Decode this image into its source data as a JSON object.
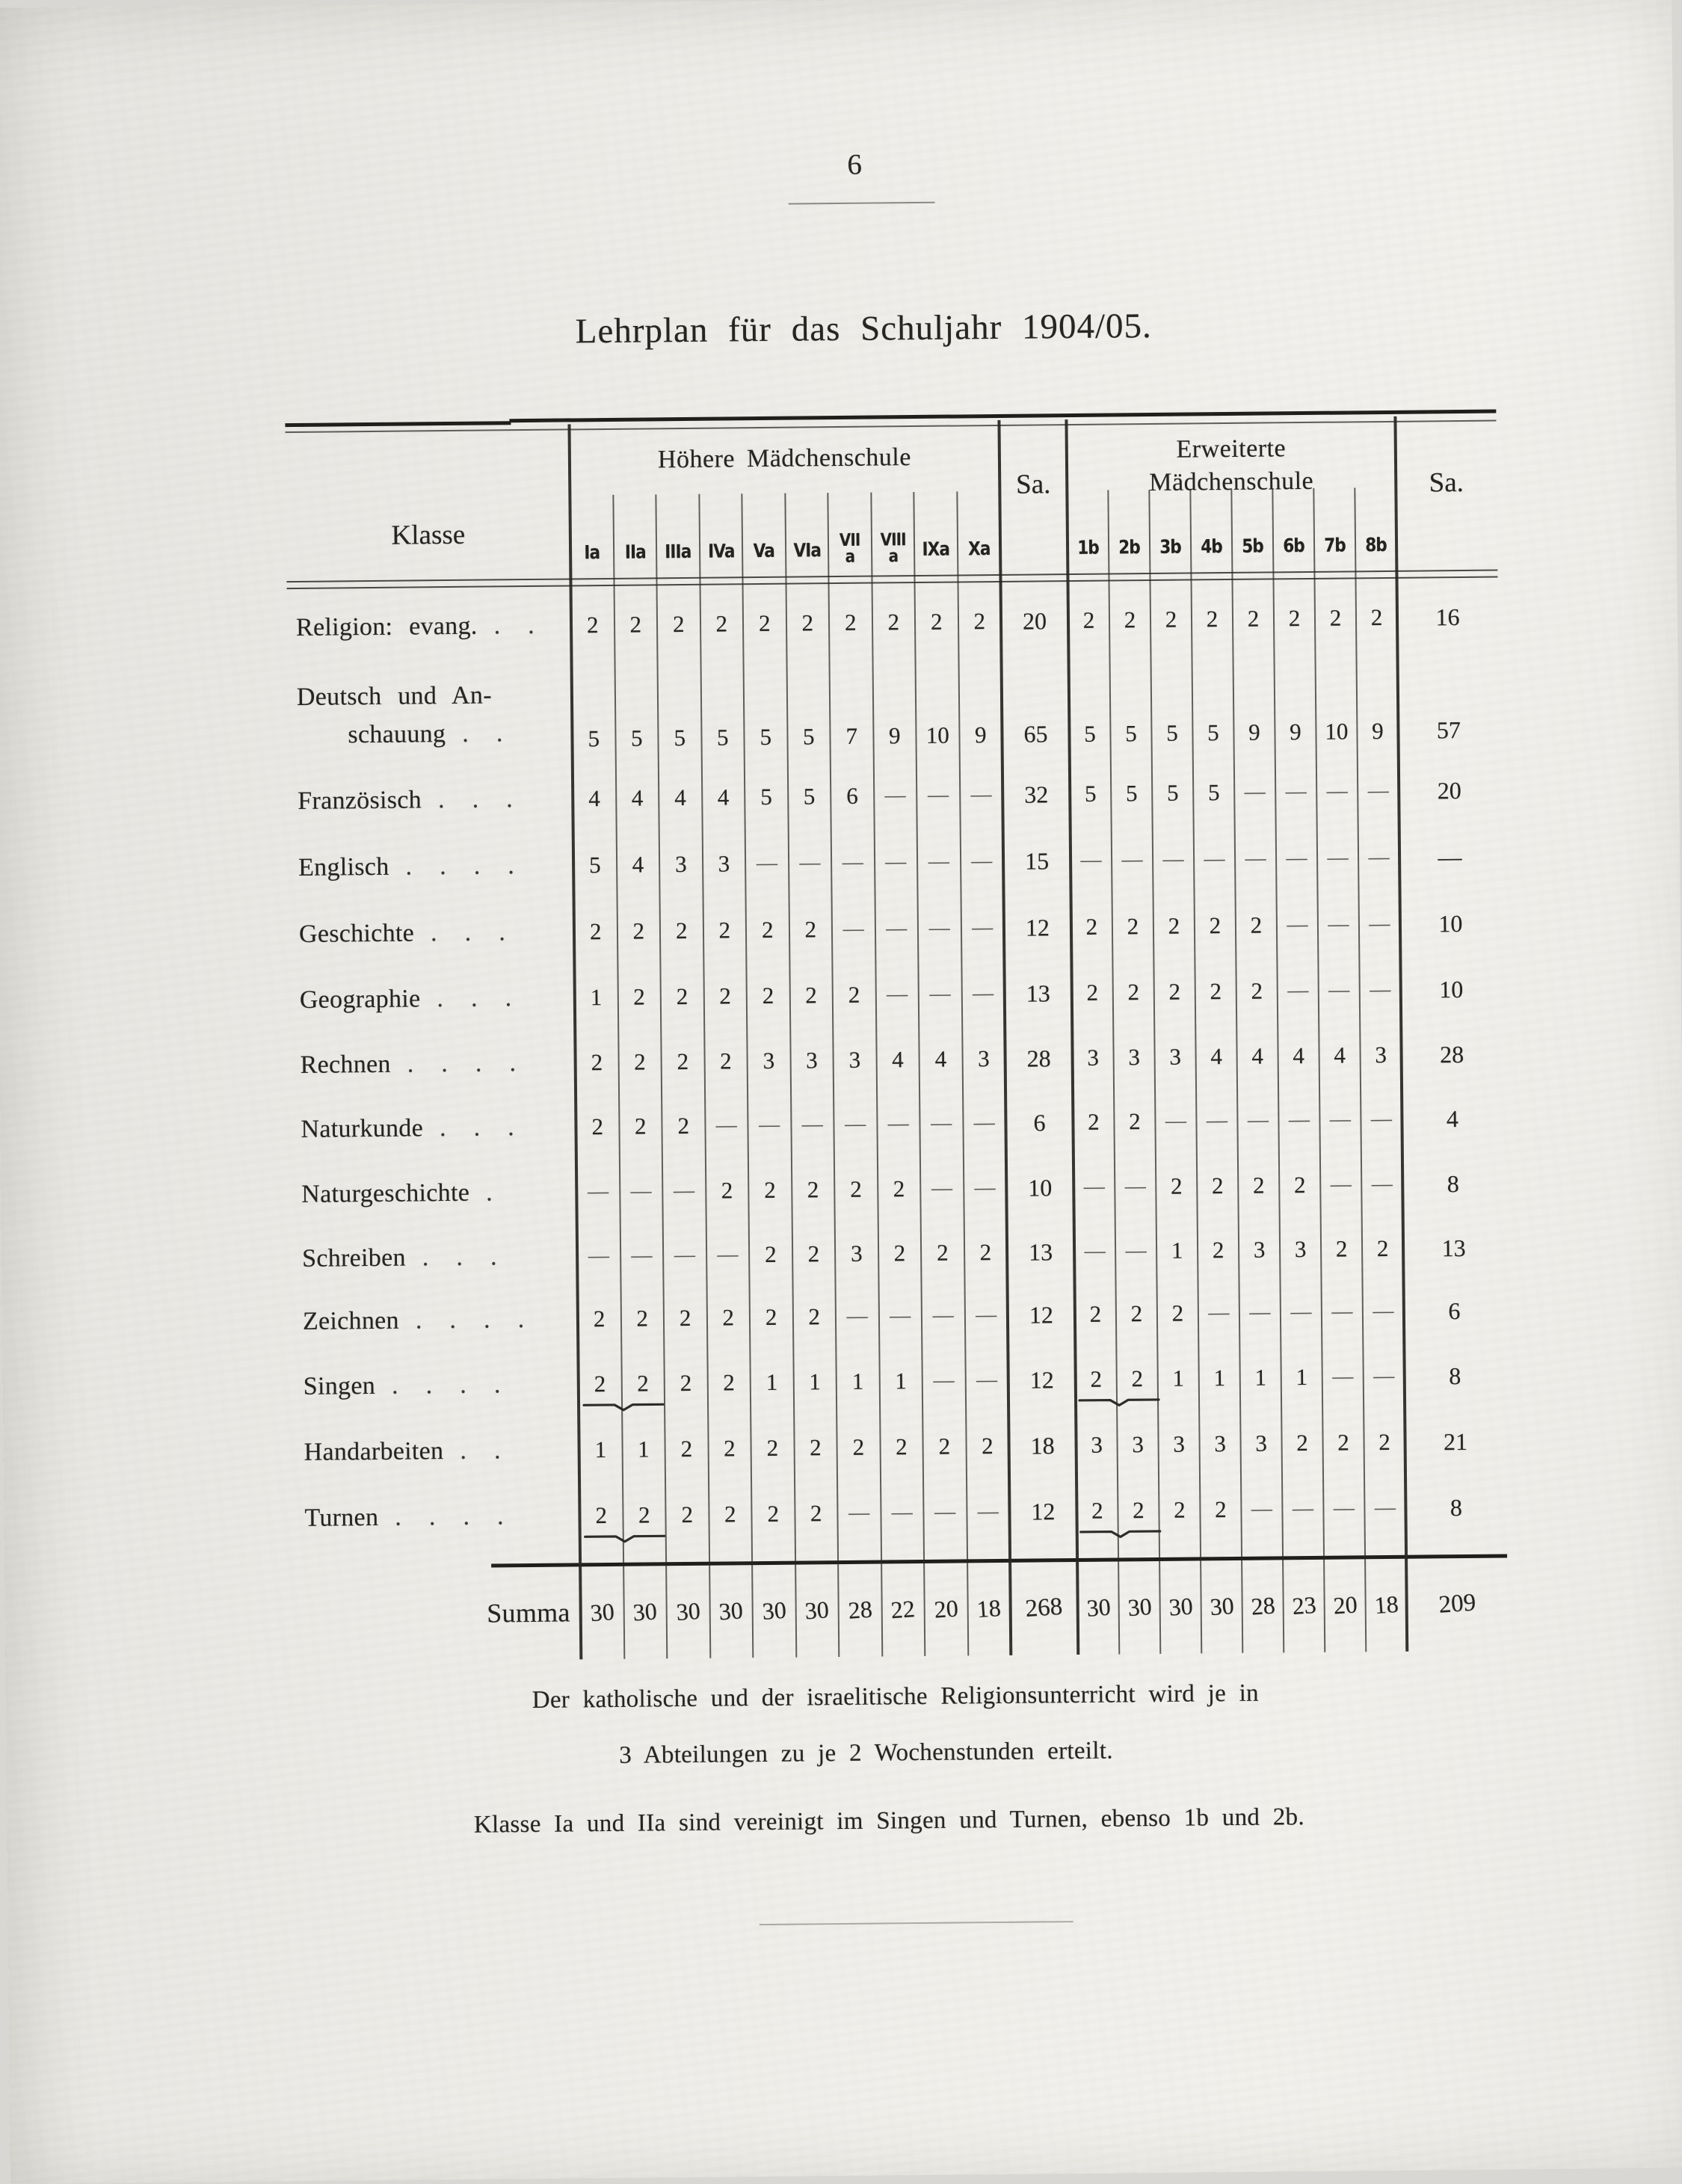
{
  "page_number": "6",
  "title": "Lehrplan für das Schuljahr 1904/05.",
  "table": {
    "klasse_label": "Klasse",
    "group_a_title": "Höhere Mädchenschule",
    "group_b_line1": "Erweiterte",
    "group_b_line2": "Mädchenschule",
    "sa_label_a": "Sa.",
    "sa_label_b": "Sa.",
    "cols_a": [
      "Ia",
      "IIa",
      "IIIa",
      "IVa",
      "Va",
      "VIa",
      "VIIa",
      "VIIIa",
      "IXa",
      "Xa"
    ],
    "cols_b": [
      "1b",
      "2b",
      "3b",
      "4b",
      "5b",
      "6b",
      "7b",
      "8b"
    ],
    "rows": [
      {
        "label": "Religion: evang.",
        "dots": ". .",
        "a": [
          2,
          2,
          2,
          2,
          2,
          2,
          2,
          2,
          2,
          2
        ],
        "sa_a": 20,
        "b": [
          2,
          2,
          2,
          2,
          2,
          2,
          2,
          2
        ],
        "sa_b": 16
      },
      {
        "label": "Deutsch und An-",
        "label2": "schauung",
        "dots": ". .",
        "a": [
          5,
          5,
          5,
          5,
          5,
          5,
          7,
          9,
          10,
          9
        ],
        "sa_a": 65,
        "b": [
          5,
          5,
          5,
          5,
          9,
          9,
          10,
          9
        ],
        "sa_b": 57
      },
      {
        "label": "Französisch",
        "dots": ". . .",
        "a": [
          4,
          4,
          4,
          4,
          5,
          5,
          6,
          null,
          null,
          null
        ],
        "sa_a": 32,
        "b": [
          5,
          5,
          5,
          5,
          null,
          null,
          null,
          null
        ],
        "sa_b": 20
      },
      {
        "label": "Englisch",
        "dots": ". . . .",
        "a": [
          5,
          4,
          3,
          3,
          null,
          null,
          null,
          null,
          null,
          null
        ],
        "sa_a": 15,
        "b": [
          null,
          null,
          null,
          null,
          null,
          null,
          null,
          null
        ],
        "sa_b": "—"
      },
      {
        "label": "Geschichte",
        "dots": ". . .",
        "a": [
          2,
          2,
          2,
          2,
          2,
          2,
          null,
          null,
          null,
          null
        ],
        "sa_a": 12,
        "b": [
          2,
          2,
          2,
          2,
          2,
          null,
          null,
          null
        ],
        "sa_b": 10
      },
      {
        "label": "Geographie",
        "dots": ". . .",
        "a": [
          1,
          2,
          2,
          2,
          2,
          2,
          2,
          null,
          null,
          null
        ],
        "sa_a": 13,
        "b": [
          2,
          2,
          2,
          2,
          2,
          null,
          null,
          null
        ],
        "sa_b": 10
      },
      {
        "label": "Rechnen",
        "dots": ". . . .",
        "a": [
          2,
          2,
          2,
          2,
          3,
          3,
          3,
          4,
          4,
          3
        ],
        "sa_a": 28,
        "b": [
          3,
          3,
          3,
          4,
          4,
          4,
          4,
          3
        ],
        "sa_b": 28
      },
      {
        "label": "Naturkunde",
        "dots": ". . .",
        "a": [
          2,
          2,
          2,
          null,
          null,
          null,
          null,
          null,
          null,
          null
        ],
        "sa_a": 6,
        "b": [
          2,
          2,
          null,
          null,
          null,
          null,
          null,
          null
        ],
        "sa_b": 4
      },
      {
        "label": "Naturgeschichte",
        "dots": ".",
        "a": [
          null,
          null,
          null,
          2,
          2,
          2,
          2,
          2,
          null,
          null
        ],
        "sa_a": 10,
        "b": [
          null,
          null,
          2,
          2,
          2,
          2,
          null,
          null
        ],
        "sa_b": 8
      },
      {
        "label": "Schreiben",
        "dots": ". . .",
        "a": [
          null,
          null,
          null,
          null,
          2,
          2,
          3,
          2,
          2,
          2
        ],
        "sa_a": 13,
        "b": [
          null,
          null,
          1,
          2,
          3,
          3,
          2,
          2
        ],
        "sa_b": 13
      },
      {
        "label": "Zeichnen",
        "dots": ". . . .",
        "a": [
          2,
          2,
          2,
          2,
          2,
          2,
          null,
          null,
          null,
          null
        ],
        "sa_a": 12,
        "b": [
          2,
          2,
          2,
          null,
          null,
          null,
          null,
          null
        ],
        "sa_b": 6
      },
      {
        "label": "Singen",
        "dots": ". . . .",
        "a": [
          2,
          2,
          2,
          2,
          1,
          1,
          1,
          1,
          null,
          null
        ],
        "sa_a": 12,
        "b": [
          2,
          2,
          1,
          1,
          1,
          1,
          null,
          null
        ],
        "sa_b": 8,
        "brace_a": true,
        "brace_b": true
      },
      {
        "label": "Handarbeiten",
        "dots": ". .",
        "a": [
          1,
          1,
          2,
          2,
          2,
          2,
          2,
          2,
          2,
          2
        ],
        "sa_a": 18,
        "b": [
          3,
          3,
          3,
          3,
          3,
          2,
          2,
          2
        ],
        "sa_b": 21
      },
      {
        "label": "Turnen",
        "dots": ". . . .",
        "a": [
          2,
          2,
          2,
          2,
          2,
          2,
          null,
          null,
          null,
          null
        ],
        "sa_a": 12,
        "b": [
          2,
          2,
          2,
          2,
          null,
          null,
          null,
          null
        ],
        "sa_b": 8,
        "brace_a": true,
        "brace_b": true
      }
    ],
    "summa": {
      "label": "Summa",
      "a": [
        30,
        30,
        30,
        30,
        30,
        30,
        28,
        22,
        20,
        18
      ],
      "sa_a": 268,
      "b": [
        30,
        30,
        30,
        30,
        28,
        23,
        20,
        18
      ],
      "sa_b": 209
    }
  },
  "notes": {
    "note1_line1": "Der katholische und der israelitische Religionsunterricht wird je in",
    "note1_line2": "3 Abteilungen zu je 2 Wochenstunden erteilt.",
    "note2": "Klasse Ia und IIa sind vereinigt im Singen und Turnen, ebenso 1b und 2b."
  },
  "ink_color": "#23221f",
  "paper_color": "#edece8"
}
